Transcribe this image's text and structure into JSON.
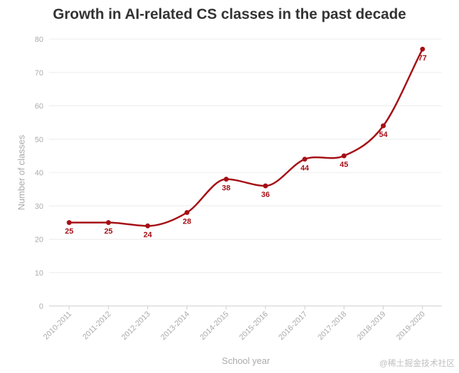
{
  "chart_data": {
    "type": "line",
    "title": "Growth in AI-related CS classes in the past decade",
    "xlabel": "School year",
    "ylabel": "Number of classes",
    "categories": [
      "2010-2011",
      "2011-2012",
      "2012-2013",
      "2013-2014",
      "2014-2015",
      "2015-2016",
      "2016-2017",
      "2017-2018",
      "2018-2019",
      "2019-2020"
    ],
    "series": [
      {
        "name": "Number of classes",
        "values": [
          25,
          25,
          24,
          28,
          38,
          36,
          44,
          45,
          54,
          77
        ]
      }
    ],
    "ylim": [
      0,
      80
    ],
    "yticks": [
      0,
      10,
      20,
      30,
      40,
      50,
      60,
      70,
      80
    ],
    "grid": true,
    "line_color": "#a50f15"
  },
  "watermark": "@稀土掘金技术社区"
}
